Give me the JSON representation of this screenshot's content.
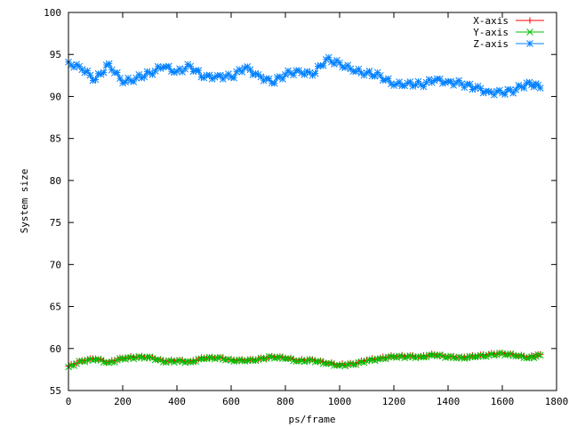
{
  "chart_data": {
    "type": "line",
    "title": "",
    "xlabel": "ps/frame",
    "ylabel": "System size",
    "xlim": [
      0,
      1800
    ],
    "ylim": [
      55,
      100
    ],
    "xticks": [
      0,
      200,
      400,
      600,
      800,
      1000,
      1200,
      1400,
      1600,
      1800
    ],
    "yticks": [
      55,
      60,
      65,
      70,
      75,
      80,
      85,
      90,
      95,
      100
    ],
    "grid": false,
    "legend_position": "top-right",
    "series": [
      {
        "name": "X-axis",
        "color": "#ff0000",
        "marker": "plus",
        "x": [
          0,
          50,
          100,
          150,
          200,
          250,
          300,
          350,
          400,
          450,
          500,
          550,
          600,
          650,
          700,
          750,
          800,
          850,
          900,
          950,
          1000,
          1050,
          1100,
          1150,
          1200,
          1250,
          1300,
          1350,
          1400,
          1450,
          1500,
          1550,
          1600,
          1650,
          1700,
          1740
        ],
        "values": [
          57.9,
          58.6,
          58.8,
          58.4,
          58.9,
          59.0,
          59.0,
          58.5,
          58.6,
          58.5,
          58.9,
          58.9,
          58.7,
          58.6,
          58.7,
          59.1,
          58.9,
          58.6,
          58.7,
          58.3,
          58.1,
          58.2,
          58.6,
          58.9,
          59.1,
          59.1,
          59.1,
          59.3,
          59.0,
          59.0,
          59.1,
          59.3,
          59.5,
          59.2,
          59.0,
          59.3
        ]
      },
      {
        "name": "Y-axis",
        "color": "#00c000",
        "marker": "cross",
        "x": [
          0,
          50,
          100,
          150,
          200,
          250,
          300,
          350,
          400,
          450,
          500,
          550,
          600,
          650,
          700,
          750,
          800,
          850,
          900,
          950,
          1000,
          1050,
          1100,
          1150,
          1200,
          1250,
          1300,
          1350,
          1400,
          1450,
          1500,
          1550,
          1600,
          1650,
          1700,
          1740
        ],
        "values": [
          57.8,
          58.5,
          58.7,
          58.3,
          58.8,
          58.9,
          59.0,
          58.4,
          58.5,
          58.4,
          58.8,
          58.9,
          58.6,
          58.5,
          58.7,
          59.0,
          58.8,
          58.5,
          58.6,
          58.2,
          58.0,
          58.1,
          58.5,
          58.8,
          59.0,
          59.0,
          59.0,
          59.2,
          59.0,
          58.9,
          59.0,
          59.2,
          59.4,
          59.1,
          58.9,
          59.2
        ]
      },
      {
        "name": "Z-axis",
        "color": "#0080ff",
        "marker": "star",
        "x": [
          0,
          50,
          100,
          150,
          200,
          250,
          300,
          350,
          400,
          450,
          500,
          550,
          600,
          650,
          700,
          750,
          800,
          850,
          900,
          950,
          1000,
          1050,
          1100,
          1150,
          1200,
          1250,
          1300,
          1350,
          1400,
          1450,
          1500,
          1550,
          1600,
          1650,
          1700,
          1740
        ],
        "values": [
          94.1,
          93.2,
          92.0,
          93.9,
          91.6,
          92.2,
          92.8,
          93.5,
          93.0,
          93.6,
          92.2,
          92.5,
          92.3,
          93.4,
          92.6,
          91.6,
          92.6,
          93.1,
          92.5,
          94.4,
          94.0,
          93.0,
          92.8,
          92.5,
          91.3,
          91.6,
          91.4,
          91.9,
          91.8,
          91.5,
          91.0,
          90.6,
          90.4,
          90.8,
          91.7,
          91.0
        ]
      }
    ]
  }
}
